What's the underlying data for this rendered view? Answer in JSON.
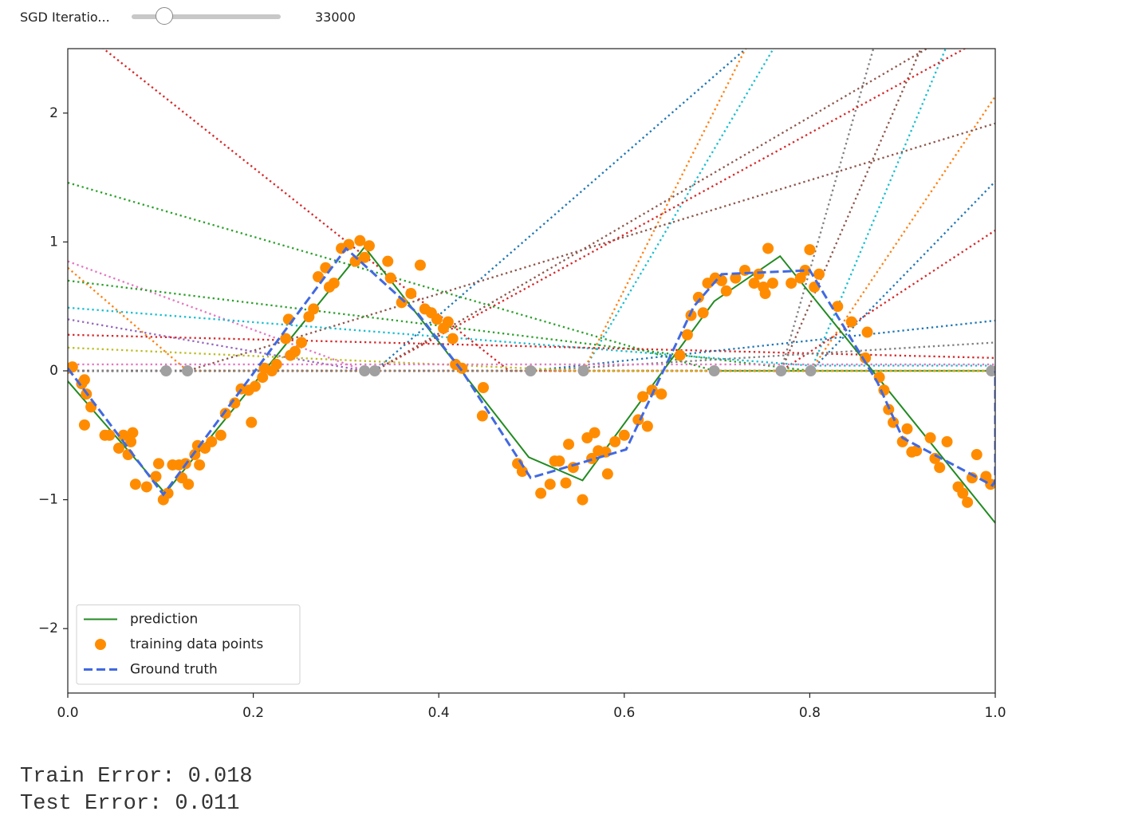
{
  "controls": {
    "slider": {
      "label": "SGD Iteratio...",
      "value": 33000
    }
  },
  "chart_data": {
    "type": "line",
    "xlim": [
      0,
      1
    ],
    "ylim": [
      -2.5,
      2.5
    ],
    "xticks": [
      {
        "value": 0,
        "label": "0.0"
      },
      {
        "value": 0.2,
        "label": "0.2"
      },
      {
        "value": 0.4,
        "label": "0.4"
      },
      {
        "value": 0.6,
        "label": "0.6"
      },
      {
        "value": 0.8,
        "label": "0.8"
      },
      {
        "value": 1,
        "label": "1.0"
      }
    ],
    "yticks": [
      {
        "value": -2,
        "label": "−2"
      },
      {
        "value": -1,
        "label": "−1"
      },
      {
        "value": 0,
        "label": "0"
      },
      {
        "value": 1,
        "label": "1"
      },
      {
        "value": 2,
        "label": "2"
      }
    ],
    "grid": false,
    "legend": "lower left",
    "series": [
      {
        "type": "line",
        "style": "dotted",
        "color": "#d62728",
        "x": [
          0,
          0.476,
          1
        ],
        "values": [
          2.72,
          0,
          0
        ]
      },
      {
        "type": "line",
        "style": "dotted",
        "color": "#1f77b4",
        "x": [
          0,
          0.331,
          1
        ],
        "values": [
          0,
          0,
          4.18
        ]
      },
      {
        "type": "line",
        "style": "dotted",
        "color": "#17becf",
        "x": [
          0,
          0.556,
          1
        ],
        "values": [
          0,
          0,
          5.42
        ]
      },
      {
        "type": "line",
        "style": "dotted",
        "color": "#ff7f0e",
        "x": [
          0,
          0.556,
          1
        ],
        "values": [
          0,
          0,
          6.35
        ]
      },
      {
        "type": "line",
        "style": "dotted",
        "color": "#7f7f7f",
        "x": [
          0,
          0.769,
          1
        ],
        "values": [
          0,
          0,
          5.8
        ]
      },
      {
        "type": "line",
        "style": "dotted",
        "color": "#8c564b",
        "x": [
          0,
          0.769,
          1
        ],
        "values": [
          0,
          0,
          3.83
        ]
      },
      {
        "type": "line",
        "style": "dotted",
        "color": "#17becf",
        "x": [
          0,
          0.801,
          1
        ],
        "values": [
          0,
          0,
          3.42
        ]
      },
      {
        "type": "line",
        "style": "dotted",
        "color": "#ff7f0e",
        "x": [
          0,
          0.801,
          1
        ],
        "values": [
          0,
          0,
          2.13
        ]
      },
      {
        "type": "line",
        "style": "dotted",
        "color": "#1f77b4",
        "x": [
          0,
          0.801,
          1
        ],
        "values": [
          0,
          0,
          1.47
        ]
      },
      {
        "type": "line",
        "style": "dotted",
        "color": "#d62728",
        "x": [
          0,
          0.769,
          1
        ],
        "values": [
          0,
          0,
          1.09
        ]
      },
      {
        "type": "line",
        "style": "dotted",
        "color": "#8c564b",
        "x": [
          0,
          0.129,
          1
        ],
        "values": [
          0,
          0,
          1.92
        ]
      },
      {
        "type": "line",
        "style": "dotted",
        "color": "#d62728",
        "x": [
          0,
          0.331,
          1
        ],
        "values": [
          0,
          0,
          2.63
        ]
      },
      {
        "type": "line",
        "style": "dotted",
        "color": "#8c564b",
        "x": [
          0,
          0.331,
          1
        ],
        "values": [
          0,
          0,
          2.81
        ]
      },
      {
        "type": "line",
        "style": "dotted",
        "color": "#2ca02c",
        "x": [
          0,
          0.697,
          1
        ],
        "values": [
          1.46,
          0,
          0
        ]
      },
      {
        "type": "line",
        "style": "dotted",
        "color": "#e377c2",
        "x": [
          0,
          0.32,
          1
        ],
        "values": [
          0.85,
          0,
          0
        ]
      },
      {
        "type": "line",
        "style": "dotted",
        "color": "#9467bd",
        "x": [
          0,
          0.32,
          1
        ],
        "values": [
          0.4,
          0,
          0
        ]
      },
      {
        "type": "line",
        "style": "dotted",
        "color": "#ff7f0e",
        "x": [
          0,
          0.129,
          1
        ],
        "values": [
          0.8,
          0,
          0
        ]
      },
      {
        "type": "line",
        "style": "dotted",
        "color": "#17becf",
        "x": [
          0,
          0.801,
          1
        ],
        "values": [
          0.49,
          0.04,
          0.04
        ]
      },
      {
        "type": "line",
        "style": "dotted",
        "color": "#2ca02c",
        "x": [
          0,
          0.801,
          1
        ],
        "values": [
          0.7,
          0,
          0
        ]
      },
      {
        "type": "line",
        "style": "dotted",
        "color": "#d62728",
        "x": [
          0,
          1
        ],
        "values": [
          0.28,
          0.1
        ]
      },
      {
        "type": "line",
        "style": "dotted",
        "color": "#1f77b4",
        "x": [
          0,
          0.499,
          1
        ],
        "values": [
          0,
          0,
          0.39
        ]
      },
      {
        "type": "line",
        "style": "dotted",
        "color": "#7f7f7f",
        "x": [
          0,
          0.499,
          1
        ],
        "values": [
          0,
          0,
          0.22
        ]
      },
      {
        "type": "line",
        "style": "dotted",
        "color": "#bcbd22",
        "x": [
          0,
          0.556,
          1
        ],
        "values": [
          0.18,
          0,
          0
        ]
      },
      {
        "type": "line",
        "style": "dotted",
        "color": "#e377c2",
        "x": [
          0,
          1
        ],
        "values": [
          0.05,
          0.05
        ]
      },
      {
        "type": "scatter",
        "color": "#a0a0a0",
        "size": 7,
        "x": [
          0.106,
          0.129,
          0.32,
          0.331,
          0.499,
          0.556,
          0.697,
          0.769,
          0.801,
          0.996
        ],
        "values": [
          0,
          0,
          0,
          0,
          0,
          0,
          0,
          0,
          0,
          0
        ]
      },
      {
        "name": "prediction",
        "type": "line",
        "style": "solid",
        "color": "#228b22",
        "x": [
          0,
          0.105,
          0.32,
          0.42,
          0.497,
          0.555,
          0.697,
          0.768,
          1
        ],
        "values": [
          -0.08,
          -0.95,
          0.96,
          0.04,
          -0.67,
          -0.85,
          0.54,
          0.89,
          -1.18
        ]
      },
      {
        "name": "training data points",
        "type": "scatter",
        "color": "#ff8c00",
        "size": 7,
        "x": [
          0,
          0.005,
          0.015,
          0.018,
          0.02,
          0.025,
          0.018,
          0.04,
          0.045,
          0.055,
          0.06,
          0.065,
          0.068,
          0.07,
          0.073,
          0.085,
          0.095,
          0.098,
          0.103,
          0.108,
          0.113,
          0.12,
          0.123,
          0.127,
          0.13,
          0.137,
          0.14,
          0.142,
          0.148,
          0.155,
          0.165,
          0.17,
          0.18,
          0.187,
          0.195,
          0.198,
          0.202,
          0.21,
          0.212,
          0.22,
          0.225,
          0.235,
          0.238,
          0.24,
          0.245,
          0.252,
          0.26,
          0.265,
          0.27,
          0.278,
          0.282,
          0.287,
          0.295,
          0.303,
          0.31,
          0.315,
          0.32,
          0.325,
          0.345,
          0.348,
          0.36,
          0.37,
          0.38,
          0.385,
          0.392,
          0.398,
          0.405,
          0.41,
          0.415,
          0.418,
          0.425,
          0.448,
          0.447,
          0.485,
          0.49,
          0.51,
          0.52,
          0.525,
          0.53,
          0.537,
          0.54,
          0.545,
          0.555,
          0.56,
          0.565,
          0.568,
          0.572,
          0.58,
          0.582,
          0.59,
          0.6,
          0.615,
          0.62,
          0.625,
          0.63,
          0.64,
          0.66,
          0.668,
          0.672,
          0.68,
          0.685,
          0.69,
          0.698,
          0.705,
          0.71,
          0.72,
          0.73,
          0.74,
          0.745,
          0.75,
          0.752,
          0.755,
          0.76,
          0.78,
          0.79,
          0.795,
          0.8,
          0.805,
          0.81,
          0.83,
          0.845,
          0.86,
          0.862,
          0.875,
          0.88,
          0.885,
          0.89,
          0.9,
          0.905,
          0.91,
          0.915,
          0.93,
          0.935,
          0.94,
          0.948,
          0.96,
          0.965,
          0.97,
          0.975,
          0.98,
          0.99,
          0.995
        ],
        "values": [
          0.02,
          0.03,
          -0.1,
          -0.07,
          -0.18,
          -0.28,
          -0.42,
          -0.5,
          -0.5,
          -0.6,
          -0.5,
          -0.65,
          -0.55,
          -0.48,
          -0.88,
          -0.9,
          -0.82,
          -0.72,
          -1.0,
          -0.95,
          -0.73,
          -0.73,
          -0.83,
          -0.72,
          -0.88,
          -0.65,
          -0.58,
          -0.73,
          -0.6,
          -0.55,
          -0.5,
          -0.33,
          -0.25,
          -0.14,
          -0.15,
          -0.4,
          -0.12,
          -0.05,
          0.02,
          0.0,
          0.05,
          0.25,
          0.4,
          0.12,
          0.15,
          0.22,
          0.42,
          0.48,
          0.73,
          0.8,
          0.65,
          0.68,
          0.95,
          0.98,
          0.85,
          1.01,
          0.88,
          0.97,
          0.85,
          0.72,
          0.53,
          0.6,
          0.82,
          0.48,
          0.45,
          0.4,
          0.33,
          0.38,
          0.25,
          0.05,
          0.02,
          -0.13,
          -0.35,
          -0.72,
          -0.78,
          -0.95,
          -0.88,
          -0.7,
          -0.7,
          -0.87,
          -0.57,
          -0.75,
          -1.0,
          -0.52,
          -0.68,
          -0.48,
          -0.62,
          -0.63,
          -0.8,
          -0.55,
          -0.5,
          -0.38,
          -0.2,
          -0.43,
          -0.15,
          -0.18,
          0.12,
          0.28,
          0.43,
          0.57,
          0.45,
          0.68,
          0.72,
          0.7,
          0.62,
          0.72,
          0.78,
          0.68,
          0.75,
          0.65,
          0.6,
          0.95,
          0.68,
          0.68,
          0.72,
          0.78,
          0.94,
          0.65,
          0.75,
          0.5,
          0.38,
          0.1,
          0.3,
          -0.05,
          -0.15,
          -0.3,
          -0.4,
          -0.55,
          -0.45,
          -0.63,
          -0.62,
          -0.52,
          -0.68,
          -0.75,
          -0.55,
          -0.9,
          -0.95,
          -1.02,
          -0.83,
          -0.65,
          -0.82,
          -0.88
        ]
      },
      {
        "name": "Ground truth",
        "type": "line",
        "style": "dashed",
        "color": "#4169e1",
        "x": [
          0,
          0.103,
          0.3,
          0.378,
          0.425,
          0.499,
          0.602,
          0.675,
          0.705,
          0.8,
          0.873,
          0.9,
          0.997,
          1,
          1
        ],
        "values": [
          0.02,
          -0.96,
          0.95,
          0.44,
          0,
          -0.83,
          -0.61,
          0.5,
          0.75,
          0.78,
          -0.09,
          -0.52,
          -0.89,
          -0.85,
          0
        ]
      }
    ]
  },
  "errors": [
    {
      "label": "Train Error:",
      "value": 0.018
    },
    {
      "label": "Test Error:",
      "value": 0.011
    }
  ]
}
